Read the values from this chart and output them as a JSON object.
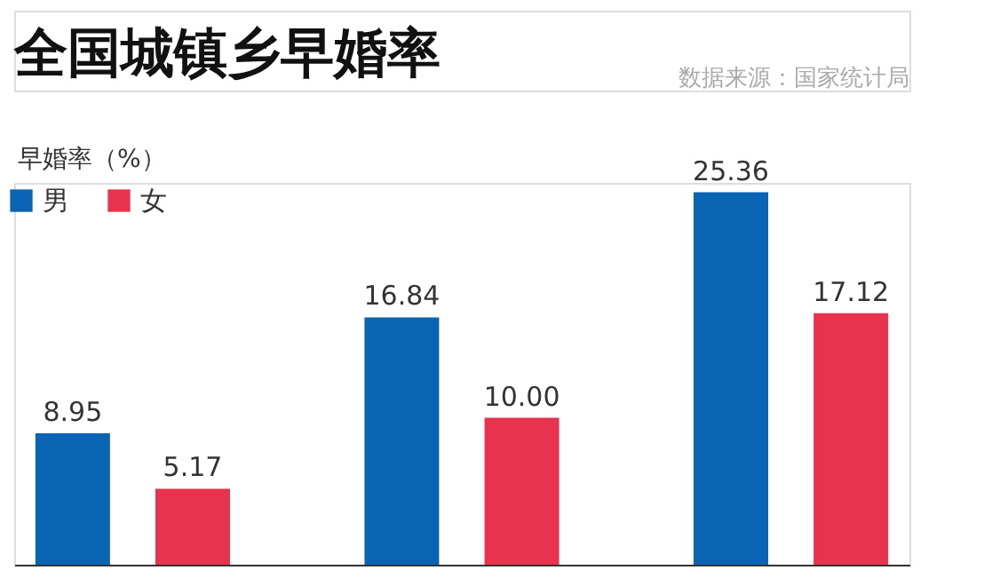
{
  "chart_data": {
    "type": "bar",
    "title": "全国城镇乡早婚率",
    "ylabel": "早婚率（%）",
    "annotations": [
      "数据来源：国家统计局"
    ],
    "categories": [
      null,
      null,
      null
    ],
    "series": [
      {
        "name": "男",
        "color": "#0a64b4",
        "values": [
          8.95,
          16.84,
          25.36
        ],
        "value_labels": [
          "8.95",
          "16.84",
          "25.36"
        ]
      },
      {
        "name": "女",
        "color": "#e8334f",
        "values": [
          5.17,
          10.0,
          17.12
        ],
        "value_labels": [
          "5.17",
          "10.00",
          "17.12"
        ]
      }
    ],
    "tick_labels": false,
    "legend": "top left"
  }
}
